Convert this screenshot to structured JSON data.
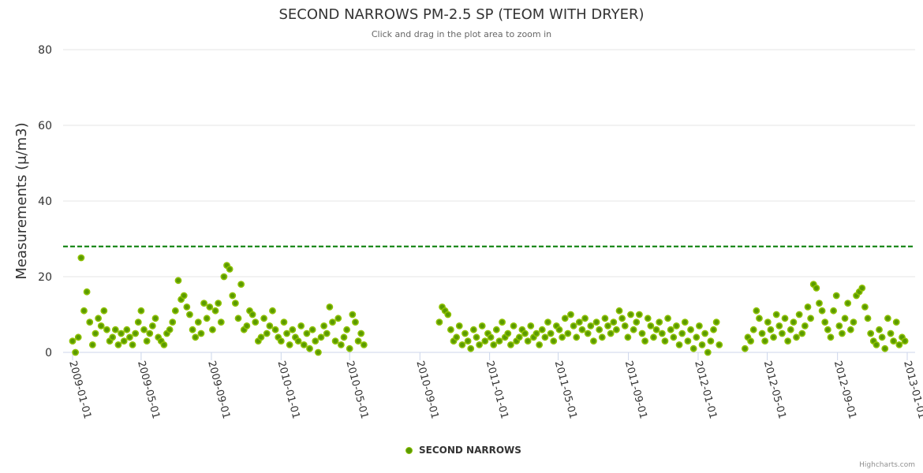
{
  "chart_data": {
    "type": "scatter",
    "title": "SECOND NARROWS PM-2.5 SP (TEOM WITH DRYER)",
    "subtitle": "Click and drag in the plot area to zoom in",
    "xlabel": "",
    "ylabel": "Measurements (μ/m3)",
    "ylim": [
      0,
      80
    ],
    "yticks": [
      "0",
      "20",
      "40",
      "60",
      "80"
    ],
    "xlim": [
      "2009-01-01",
      "2013-01-01"
    ],
    "xticks": [
      "2009-01-01",
      "2009-05-01",
      "2009-09-01",
      "2010-01-01",
      "2010-05-01",
      "2010-09-01",
      "2011-01-01",
      "2011-05-01",
      "2011-09-01",
      "2012-01-01",
      "2012-05-01",
      "2012-09-01",
      "2013-01-01"
    ],
    "grid": true,
    "threshold_line": {
      "value": 28,
      "color": "#007a00",
      "style": "dashed"
    },
    "legend": {
      "position": "bottom-center",
      "entries": [
        "SECOND NARROWS"
      ]
    },
    "series": [
      {
        "name": "SECOND NARROWS",
        "color": "#6aa800",
        "segments": [
          {
            "start": "2009-01-01",
            "step_days": 5,
            "values": [
              3,
              0,
              4,
              25,
              11,
              16,
              8,
              2,
              5,
              9,
              7,
              11,
              6,
              3,
              4,
              6,
              2,
              5,
              3,
              6,
              4,
              2,
              5,
              8,
              11,
              6,
              3,
              5,
              7,
              9,
              4,
              3,
              2,
              5,
              6,
              8,
              11,
              19,
              14,
              15,
              12,
              10,
              6,
              4,
              8,
              5,
              13,
              9,
              12,
              6,
              11,
              13,
              8,
              20,
              23,
              22,
              15,
              13,
              9,
              18,
              6,
              7,
              11,
              10,
              8,
              3,
              4,
              9,
              5,
              7,
              11,
              6,
              4,
              3,
              8,
              5,
              2,
              6,
              4,
              3,
              7,
              2,
              5,
              1,
              6,
              3,
              0,
              4,
              7,
              5,
              12,
              8,
              3,
              9,
              2,
              4,
              6,
              1,
              10,
              8,
              3,
              5,
              2
            ]
          },
          {
            "start": "2010-10-05",
            "step_days": 5,
            "values": [
              8,
              12,
              11,
              10,
              6,
              3,
              4,
              7,
              2,
              5,
              3,
              1,
              6,
              4,
              2,
              7,
              3,
              5,
              4,
              2,
              6,
              3,
              8,
              4,
              5,
              2,
              7,
              3,
              4,
              6,
              5,
              3,
              7,
              4,
              5,
              2,
              6,
              4,
              8,
              5,
              3,
              7,
              6,
              4,
              9,
              5,
              10,
              7,
              4,
              8,
              6,
              9,
              5,
              7,
              3,
              8,
              6,
              4,
              9,
              7,
              5,
              8,
              6,
              11,
              9,
              7,
              4,
              10,
              6,
              8,
              10,
              5,
              3,
              9,
              7,
              4,
              6,
              8,
              5,
              3,
              9,
              6,
              4,
              7,
              2,
              5,
              8,
              3,
              6,
              1,
              4,
              7,
              2,
              5,
              0,
              3,
              6,
              8,
              2
            ]
          },
          {
            "start": "2012-03-23",
            "step_days": 5,
            "values": [
              1,
              4,
              3,
              6,
              11,
              9,
              5,
              3,
              8,
              6,
              4,
              10,
              7,
              5,
              9,
              3,
              6,
              8,
              4,
              10,
              5,
              7,
              12,
              9,
              18,
              17,
              13,
              11,
              8,
              6,
              4,
              11,
              15,
              7,
              5,
              9,
              13,
              6,
              8,
              15,
              16,
              17,
              12,
              9,
              5,
              3,
              2,
              6,
              4,
              1,
              9,
              5,
              3,
              8,
              2,
              4,
              3
            ]
          }
        ]
      }
    ]
  },
  "credits": "Highcharts.com"
}
